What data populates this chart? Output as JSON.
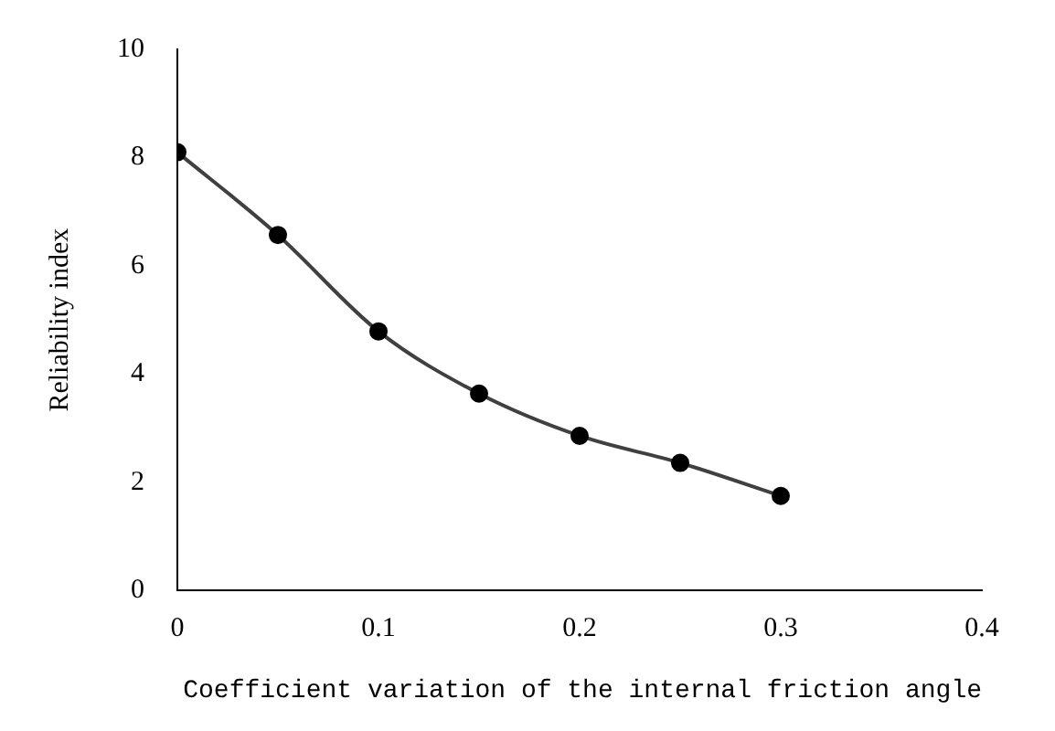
{
  "chart_data": {
    "type": "line",
    "xlabel": "Coefficient variation of the internal friction angle",
    "ylabel": "Reliability index",
    "x": [
      0,
      0.05,
      0.1,
      0.15,
      0.2,
      0.25,
      0.3
    ],
    "series": [
      {
        "color": "#404040",
        "values": [
          8.1,
          6.57,
          4.79,
          3.64,
          2.86,
          2.36,
          1.75
        ]
      }
    ],
    "xlim": [
      0,
      0.4
    ],
    "xticks": [
      0,
      0.1,
      0.2,
      0.3,
      0.4
    ],
    "ylim": [
      0,
      10
    ],
    "yticks": [
      0,
      2,
      4,
      6,
      8,
      10
    ],
    "grid": false,
    "legend": false,
    "marker": "circle",
    "line_style": "solid"
  }
}
